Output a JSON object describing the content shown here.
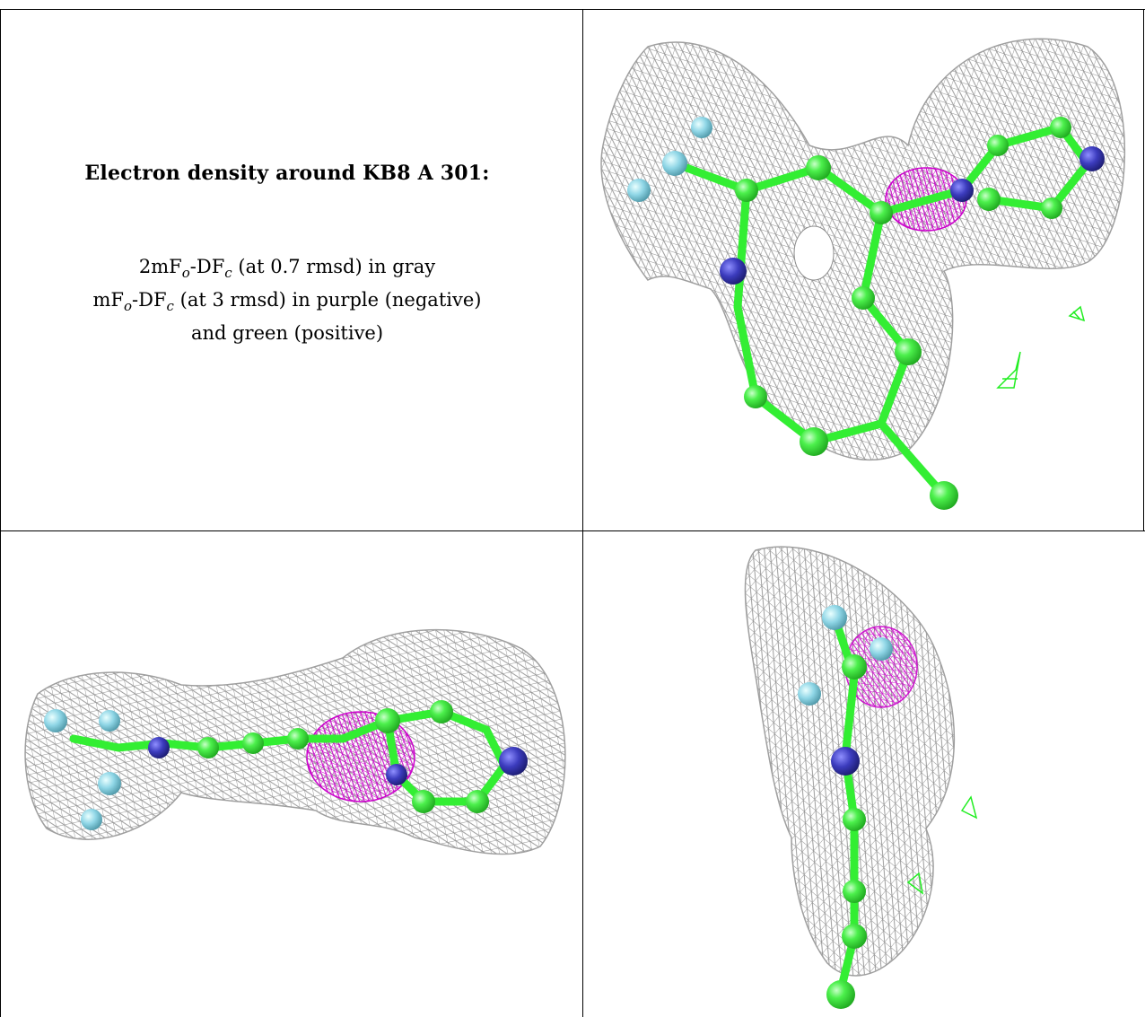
{
  "caption": {
    "title": "Electron density around KB8 A 301:",
    "line1_pre": "2mF",
    "line1_sub1": "o",
    "line1_mid": "-DF",
    "line1_sub2": "c",
    "line1_post": " (at 0.7 rmsd) in gray",
    "line2_pre": "mF",
    "line2_sub1": "o",
    "line2_mid": "-DF",
    "line2_sub2": "c",
    "line2_post": " (at 3 rmsd) in purple (negative)",
    "line3": "and green (positive)"
  },
  "colors": {
    "mesh_gray": "#8a8a8a",
    "carbon_green": "#33ee33",
    "nitrogen_blue": "#3c3cbe",
    "fluorine_cyan": "#8fd6e6",
    "negative_purple": "#cc00cc",
    "positive_green": "#22ee22"
  },
  "panels": [
    "density-view-top",
    "density-view-side",
    "density-view-end"
  ]
}
